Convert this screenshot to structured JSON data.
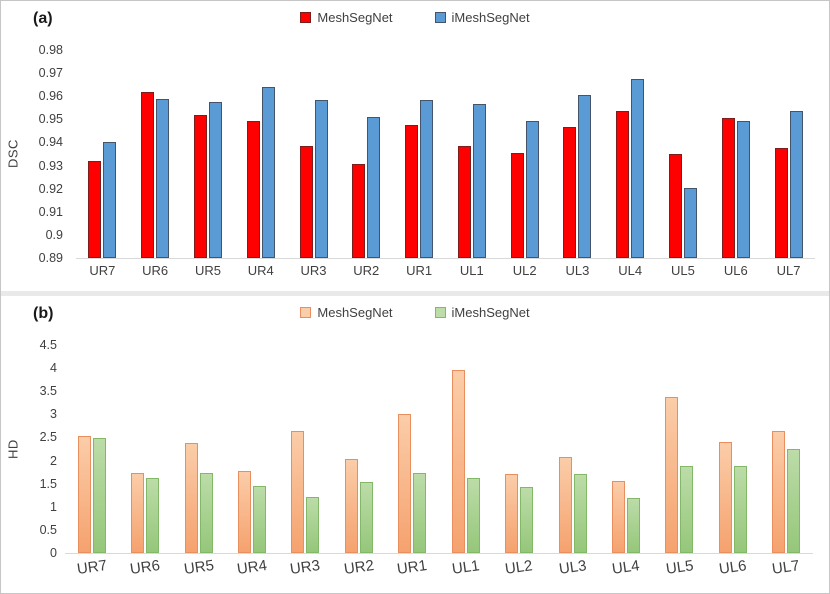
{
  "figure": {
    "background": "#ffffff",
    "border_color": "#c6c6c6",
    "separator_color": "#e9e9e9"
  },
  "chart_data": [
    {
      "type": "bar",
      "panel_label": "(a)",
      "title": "",
      "xlabel": "",
      "ylabel": "DSC",
      "grid": false,
      "legend_position": "top",
      "ylim": [
        0.89,
        0.98
      ],
      "ytick_labels": [
        "0.98",
        "0.97",
        "0.96",
        "0.95",
        "0.94",
        "0.93",
        "0.92",
        "0.91",
        "0.9",
        "0.89"
      ],
      "categories": [
        "UR7",
        "UR6",
        "UR5",
        "UR4",
        "UR3",
        "UR2",
        "UR1",
        "UL1",
        "UL2",
        "UL3",
        "UL4",
        "UL5",
        "UL6",
        "UL7"
      ],
      "series": [
        {
          "name": "MeshSegNet",
          "fill": "#fe0000",
          "fill2": "#fe0000",
          "border": "#7f1d1d",
          "values": [
            0.932,
            0.962,
            0.952,
            0.9495,
            0.9385,
            0.9305,
            0.9475,
            0.9385,
            0.9355,
            0.9465,
            0.9535,
            0.935,
            0.9505,
            0.9375
          ]
        },
        {
          "name": "iMeshSegNet",
          "fill": "#5b9bd5",
          "fill2": "#5b9bd5",
          "border": "#44546a",
          "values": [
            0.94,
            0.959,
            0.9575,
            0.964,
            0.9585,
            0.951,
            0.9585,
            0.9565,
            0.9495,
            0.9605,
            0.9675,
            0.9205,
            0.9495,
            0.9535
          ]
        }
      ]
    },
    {
      "type": "bar",
      "panel_label": "(b)",
      "title": "",
      "xlabel": "",
      "ylabel": "HD",
      "grid": false,
      "legend_position": "top",
      "ylim": [
        0,
        4.5
      ],
      "ytick_labels": [
        "4.5",
        "4",
        "3.5",
        "3",
        "2.5",
        "2",
        "1.5",
        "1",
        "0.5",
        "0"
      ],
      "categories": [
        "UR7",
        "UR6",
        "UR5",
        "UR4",
        "UR3",
        "UR2",
        "UR1",
        "UL1",
        "UL2",
        "UL3",
        "UL4",
        "UL5",
        "UL6",
        "UL7"
      ],
      "series": [
        {
          "name": "MeshSegNet",
          "fill": "#fbcda9",
          "fill2": "#f5a26e",
          "border": "#e98f5f",
          "values": [
            2.53,
            1.73,
            2.37,
            1.77,
            2.64,
            2.03,
            3.01,
            3.96,
            1.71,
            2.08,
            1.56,
            3.37,
            2.41,
            2.63
          ]
        },
        {
          "name": "iMeshSegNet",
          "fill": "#bcdca8",
          "fill2": "#95c77a",
          "border": "#83b868",
          "values": [
            2.48,
            1.63,
            1.74,
            1.46,
            1.22,
            1.54,
            1.73,
            1.62,
            1.43,
            1.71,
            1.2,
            1.89,
            1.88,
            2.25
          ]
        }
      ]
    }
  ]
}
